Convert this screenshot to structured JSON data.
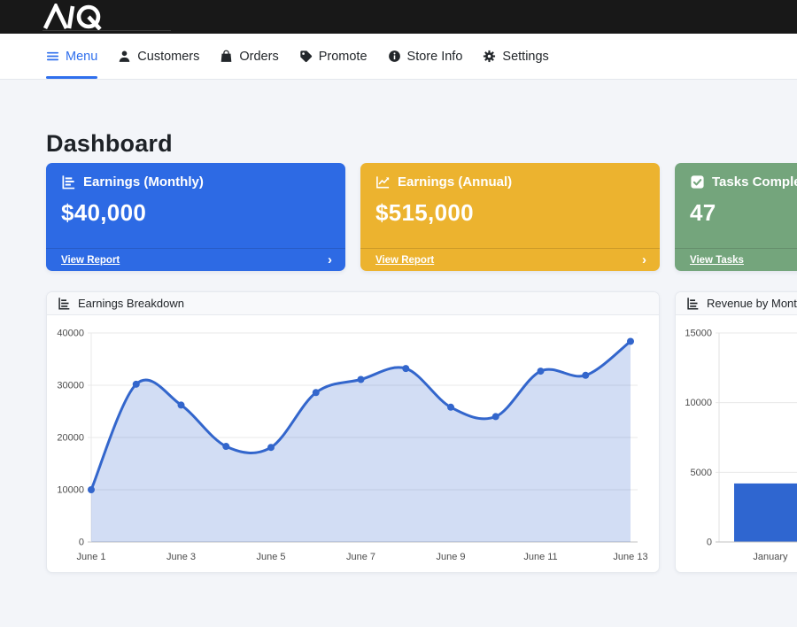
{
  "colors": {
    "accent": "#2f6fed",
    "topbar_bg": "#181818",
    "page_bg": "#f3f5f9"
  },
  "topbar": {
    "logo_icon": "aq-logo"
  },
  "nav": {
    "items": [
      {
        "label": "Menu",
        "icon": "hamburger-icon",
        "active": true
      },
      {
        "label": "Customers",
        "icon": "person-icon",
        "active": false
      },
      {
        "label": "Orders",
        "icon": "shopping-bag-icon",
        "active": false
      },
      {
        "label": "Promote",
        "icon": "tag-icon",
        "active": false
      },
      {
        "label": "Store Info",
        "icon": "info-circle-icon",
        "active": false
      },
      {
        "label": "Settings",
        "icon": "gear-icon",
        "active": false
      }
    ]
  },
  "page": {
    "title": "Dashboard"
  },
  "stat_cards": [
    {
      "title": "Earnings (Monthly)",
      "value": "$40,000",
      "link_label": "View Report",
      "chevron": "›",
      "color": "#2d6ae4",
      "icon": "horizontal-bar-chart-icon"
    },
    {
      "title": "Earnings (Annual)",
      "value": "$515,000",
      "link_label": "View Report",
      "chevron": "›",
      "color": "#ecb32f",
      "icon": "line-graph-icon"
    },
    {
      "title": "Tasks Completed",
      "value": "47",
      "link_label": "View Tasks",
      "chevron": "›",
      "color": "#74a57c",
      "icon": "check-square-icon"
    }
  ],
  "chart_data": [
    {
      "type": "area",
      "title": "Earnings Breakdown",
      "icon": "bar-chart-icon",
      "x": [
        "June 1",
        "June 2",
        "June 3",
        "June 4",
        "June 5",
        "June 6",
        "June 7",
        "June 8",
        "June 9",
        "June 10",
        "June 11",
        "June 12",
        "June 13"
      ],
      "values": [
        10000,
        30200,
        26200,
        18300,
        18100,
        28600,
        31100,
        33200,
        25800,
        24000,
        32700,
        31900,
        38400
      ],
      "x_tick_step": 2,
      "xlabel": "",
      "ylabel": "",
      "ylim": [
        0,
        40000
      ],
      "yticks": [
        0,
        10000,
        20000,
        30000,
        40000
      ],
      "grid": true,
      "legend": "none",
      "smooth": true,
      "line_color": "#3366cc",
      "fill_color": "rgba(51,102,204,0.22)"
    },
    {
      "type": "bar",
      "title": "Revenue by Month",
      "icon": "bar-chart-icon",
      "categories": [
        "January"
      ],
      "values": [
        4200
      ],
      "xlabel": "",
      "ylabel": "",
      "ylim": [
        0,
        15000
      ],
      "yticks": [
        0,
        5000,
        10000,
        15000
      ],
      "grid": true,
      "legend": "none",
      "bar_color": "#2f66d0"
    }
  ]
}
